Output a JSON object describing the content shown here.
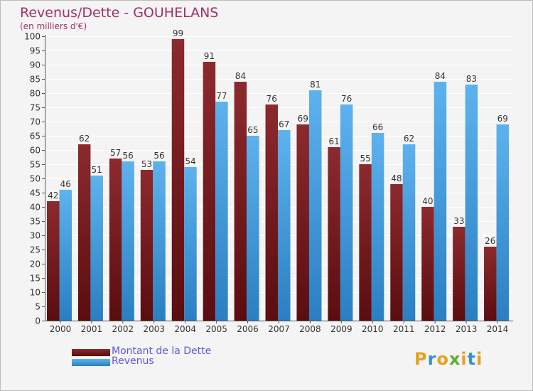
{
  "title": "Revenus/Dette - GOUHELANS",
  "subtitle": "(en milliers d'€)",
  "chart_data": {
    "type": "bar",
    "categories": [
      "2000",
      "2001",
      "2002",
      "2003",
      "2004",
      "2005",
      "2006",
      "2007",
      "2008",
      "2009",
      "2010",
      "2011",
      "2012",
      "2013",
      "2014"
    ],
    "series": [
      {
        "name": "Montant de la Dette",
        "values": [
          42,
          62,
          57,
          53,
          99,
          91,
          84,
          76,
          69,
          61,
          55,
          48,
          40,
          33,
          26
        ],
        "color": "#7a1f22"
      },
      {
        "name": "Revenus",
        "values": [
          46,
          51,
          56,
          56,
          54,
          77,
          65,
          67,
          81,
          76,
          66,
          62,
          84,
          83,
          69
        ],
        "color": "#3a95d8"
      }
    ],
    "ylim": [
      0,
      100
    ],
    "ytick_step": 5,
    "grid": true,
    "legend": "bottom-left"
  },
  "legend": {
    "debt_label": "Montant de la Dette",
    "revenue_label": "Revenus"
  },
  "logo": {
    "letters": [
      "P",
      "r",
      "o",
      "x",
      "i",
      "t",
      "i"
    ],
    "colors": [
      "#e8a020",
      "#3a8fd0",
      "#e8a020",
      "#5cb030",
      "#e8a020",
      "#3a8fd0",
      "#e8a020"
    ]
  }
}
